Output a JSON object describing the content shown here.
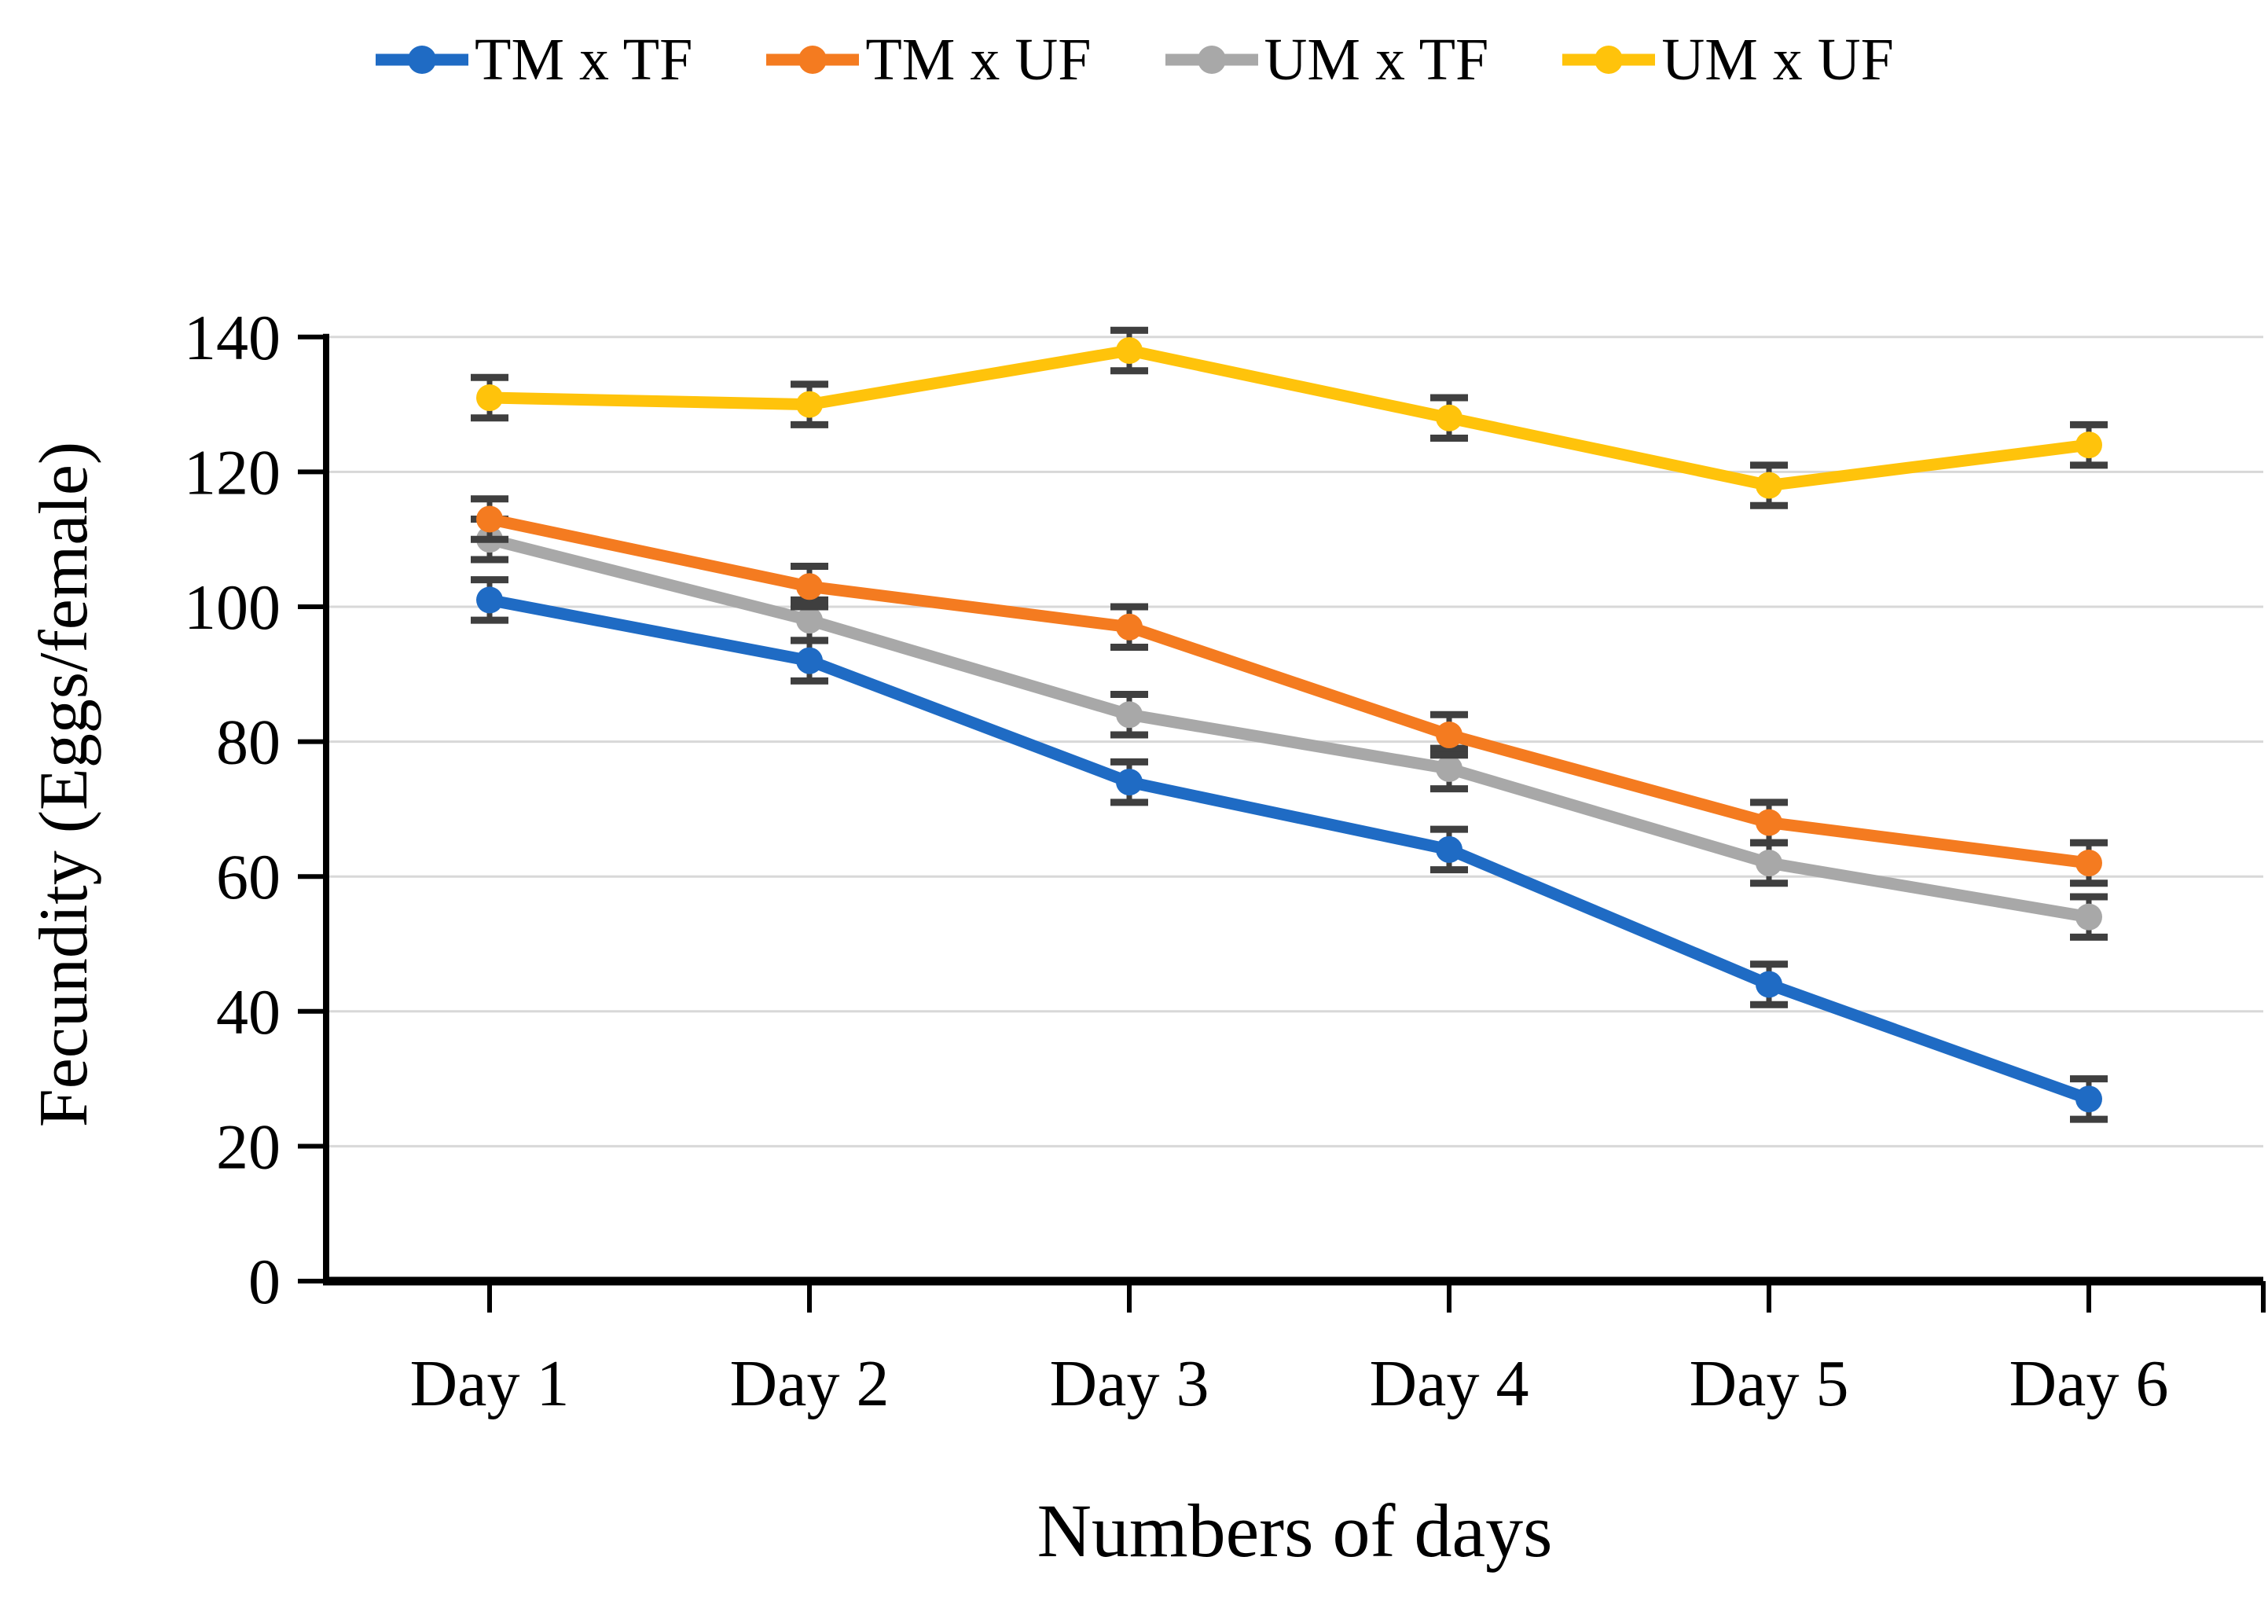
{
  "colors": {
    "background": "#ffffff",
    "axis": "#000000",
    "gridline": "#d8d8d8",
    "error_bar": "#3f3f3f",
    "text": "#000000"
  },
  "chart_data": {
    "type": "line",
    "title": "",
    "xlabel": "Numbers of days",
    "ylabel": "Fecundity (Eggs/female)",
    "categories": [
      "Day 1",
      "Day 2",
      "Day 3",
      "Day 4",
      "Day 5",
      "Day 6"
    ],
    "y_ticks": [
      0,
      20,
      40,
      60,
      80,
      100,
      120,
      140
    ],
    "ylim": [
      0,
      140
    ],
    "grid": "horizontal",
    "legend_position": "top",
    "error_bars": true,
    "marker": "circle",
    "series": [
      {
        "name": "TM x TF",
        "color": "#1f6bc4",
        "values": [
          101,
          92,
          74,
          64,
          44,
          27
        ],
        "error": 3
      },
      {
        "name": "TM x UF",
        "color": "#f47b20",
        "values": [
          113,
          103,
          97,
          81,
          68,
          62
        ],
        "error": 3
      },
      {
        "name": "UM x TF",
        "color": "#a8a8a8",
        "values": [
          110,
          98,
          84,
          76,
          62,
          54
        ],
        "error": 3
      },
      {
        "name": "UM x UF",
        "color": "#ffc30b",
        "values": [
          131,
          130,
          138,
          128,
          118,
          124
        ],
        "error": 3
      }
    ]
  }
}
